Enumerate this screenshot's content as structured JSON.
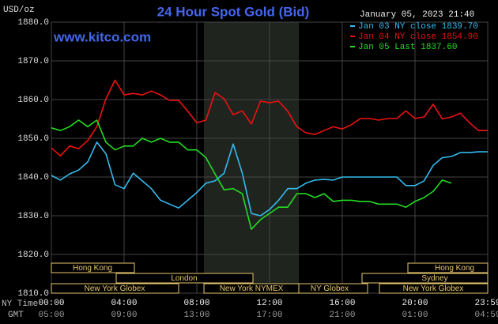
{
  "chart_data": {
    "type": "line",
    "title": "24 Hour Spot Gold (Bid)",
    "timestamp": "January 05, 2023 21:40",
    "site": "www.kitco.com",
    "y_unit": "USD/oz",
    "x_label_top": "NY Time",
    "x_label_bottom": "GMT",
    "x": [
      0,
      0.5,
      1,
      1.5,
      2,
      2.5,
      3,
      3.5,
      4,
      4.5,
      5,
      5.5,
      6,
      6.5,
      7,
      7.5,
      8,
      8.5,
      9,
      9.5,
      10,
      10.5,
      11,
      11.5,
      12,
      12.5,
      13,
      13.5,
      14,
      14.5,
      15,
      15.5,
      16,
      16.5,
      17,
      17.5,
      18,
      18.5,
      19,
      19.5,
      20,
      20.5,
      21,
      21.5,
      22,
      22.5,
      23,
      23.5,
      24
    ],
    "series": [
      {
        "name": "Jan 03 NY close 1839.70",
        "color": "#33bbee",
        "values": [
          1840.4,
          1839.2,
          1840.8,
          1841.8,
          1843.9,
          1849,
          1846,
          1838,
          1837,
          1841,
          1839,
          1837,
          1834,
          1833,
          1832,
          1834,
          1836,
          1838.4,
          1839,
          1841,
          1848.5,
          1841,
          1830.6,
          1830,
          1831.6,
          1834,
          1837,
          1837,
          1838.4,
          1839.2,
          1839.4,
          1839.2,
          1840,
          1840,
          1840,
          1840,
          1840,
          1840,
          1840,
          1837.8,
          1837.8,
          1839,
          1843,
          1845,
          1845.3,
          1846.3,
          1846.3,
          1846.5,
          1846.5
        ]
      },
      {
        "name": "Jan 04 NY close 1854.90",
        "color": "#ee1111",
        "values": [
          1847.5,
          1845.5,
          1848,
          1847.3,
          1849.4,
          1853,
          1860.2,
          1865,
          1861.2,
          1861.6,
          1861.2,
          1862.2,
          1861.2,
          1859.8,
          1859.8,
          1857,
          1854,
          1854.7,
          1861.8,
          1860.2,
          1856.1,
          1857.1,
          1853.7,
          1859.6,
          1859.2,
          1859.6,
          1857,
          1853,
          1851.4,
          1851,
          1852,
          1853,
          1852.4,
          1853.5,
          1855.1,
          1855.1,
          1854.7,
          1855.1,
          1855.1,
          1857.1,
          1855.1,
          1855.5,
          1858.8,
          1855,
          1855.5,
          1856.5,
          1854,
          1852,
          1852
        ]
      },
      {
        "name": "Jan 05 Last 1837.60",
        "color": "#22dd22",
        "values": [
          1852.7,
          1852,
          1853,
          1854.7,
          1853,
          1854.7,
          1849,
          1847,
          1848,
          1848,
          1850,
          1849,
          1850,
          1849,
          1849,
          1847,
          1847,
          1845,
          1840.8,
          1836.7,
          1837,
          1835.7,
          1826.5,
          1829,
          1830.6,
          1832.2,
          1832.2,
          1835.7,
          1835.7,
          1834.7,
          1835.7,
          1833.7,
          1834,
          1834,
          1833.7,
          1833.7,
          1833,
          1833,
          1833,
          1832.2,
          1833.7,
          1834.7,
          1836.3,
          1839.2,
          1838.4,
          null,
          null,
          null,
          null
        ]
      }
    ],
    "xlim": [
      0,
      24
    ],
    "xticks": [
      {
        "value": 0,
        "label": "00:00"
      },
      {
        "value": 4,
        "label": "04:00"
      },
      {
        "value": 8,
        "label": "08:00"
      },
      {
        "value": 12,
        "label": "12:00"
      },
      {
        "value": 16,
        "label": "16:00"
      },
      {
        "value": 20,
        "label": "20:00"
      },
      {
        "value": 24,
        "label": "23:59"
      }
    ],
    "gmt_labels": [
      "05:00",
      "09:00",
      "13:00",
      "17:00",
      "21:00",
      "01:00",
      "04:59"
    ],
    "ylim": [
      1810,
      1880
    ],
    "yticks": [
      {
        "value": 1810,
        "label": "1810.0"
      },
      {
        "value": 1820,
        "label": "1820.0"
      },
      {
        "value": 1830,
        "label": "1830.0"
      },
      {
        "value": 1840,
        "label": "1840.0"
      },
      {
        "value": 1850,
        "label": "1850.0"
      },
      {
        "value": 1860,
        "label": "1860.0"
      },
      {
        "value": 1870,
        "label": "1870.0"
      },
      {
        "value": 1880,
        "label": "1880.0"
      }
    ],
    "grid": true,
    "sessions": [
      "Hong Kong",
      "London",
      "New York Globex",
      "New York NYMEX",
      "NY Globex",
      "Sydney",
      "Hong Kong",
      "New York Globex"
    ]
  }
}
